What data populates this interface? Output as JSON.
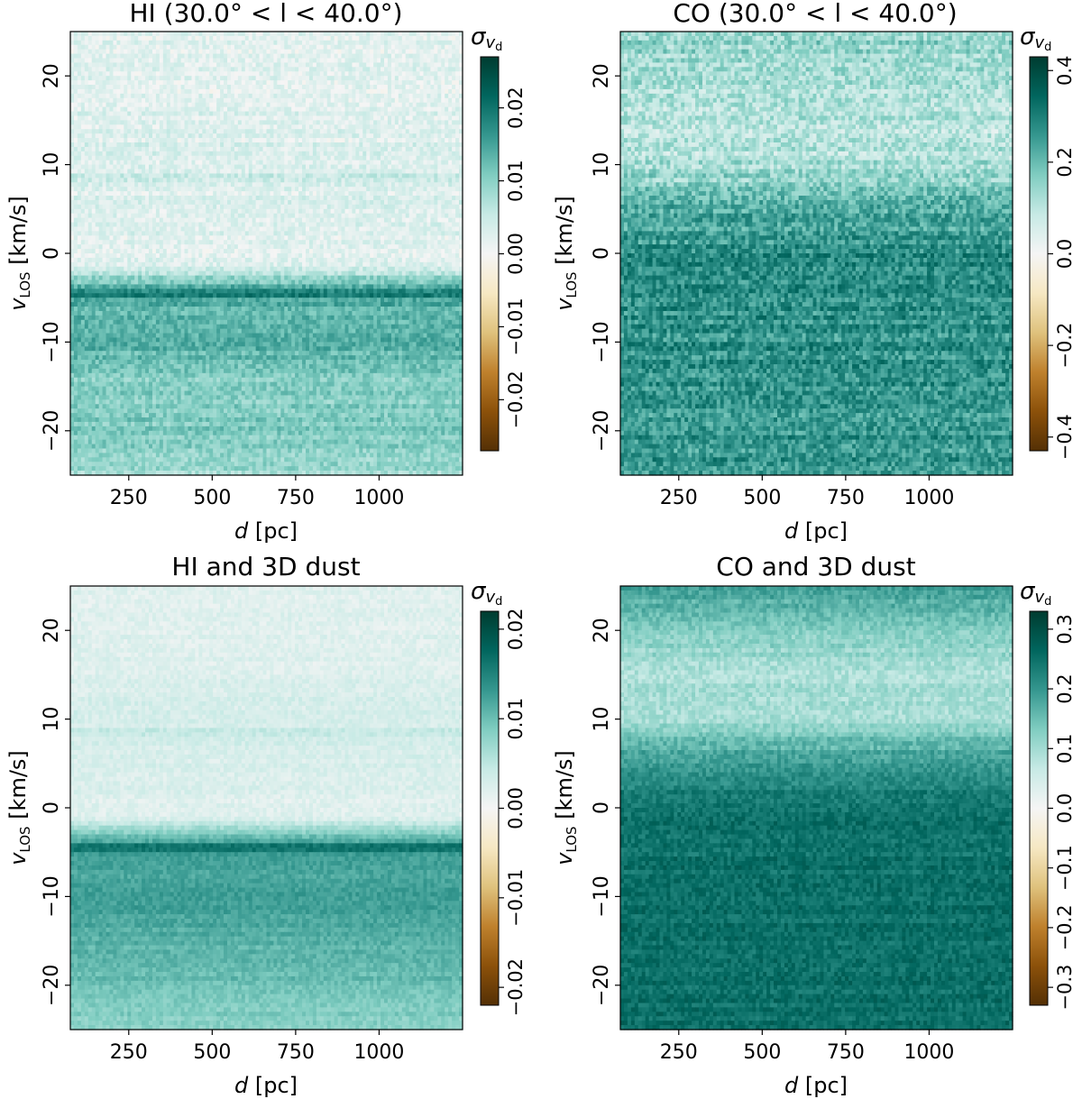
{
  "figure": {
    "colormap": {
      "name": "BrBG",
      "stops": [
        "#543005",
        "#8c510a",
        "#bf812d",
        "#dfc27d",
        "#f6e8c3",
        "#f5f5f5",
        "#c7eae5",
        "#80cdc1",
        "#35978f",
        "#01665e",
        "#003c30"
      ]
    },
    "colorbar_label_main": "σ",
    "colorbar_label_sub": "v",
    "colorbar_label_subsub": "d"
  },
  "chart_data": [
    {
      "type": "heatmap",
      "title": "HI (30.0° < l < 40.0°)",
      "xlabel": "d [pc]",
      "ylabel": "v",
      "ylabel_sub": "LOS",
      "ylabel_units": "[km/s]",
      "xlim": [
        75,
        1250
      ],
      "ylim": [
        -25,
        25
      ],
      "xticks": [
        250,
        500,
        750,
        1000
      ],
      "xtick_labels": [
        "250",
        "500",
        "750",
        "1000"
      ],
      "yticks": [
        -20,
        -10,
        0,
        10,
        20
      ],
      "ytick_labels": [
        "−20",
        "−10",
        "0",
        "10",
        "20"
      ],
      "colorbar": {
        "vmin": -0.027,
        "vmax": 0.027,
        "ticks": [
          -0.02,
          -0.01,
          0.0,
          0.01,
          0.02
        ],
        "tick_labels": [
          "−0.02",
          "−0.01",
          "0.00",
          "0.01",
          "0.02"
        ]
      },
      "profile": {
        "v": [
          -25,
          -20,
          -15,
          -10,
          -7,
          -5,
          -4.5,
          -4,
          -3,
          -2,
          -1.5,
          0,
          8,
          8.5,
          9,
          20,
          25
        ],
        "value": [
          0.008,
          0.011,
          0.01,
          0.014,
          0.013,
          0.015,
          0.022,
          0.015,
          0.01,
          0.006,
          0.003,
          0.002,
          0.003,
          0.005,
          0.003,
          0.002,
          0.002
        ]
      },
      "noise": 0.0025
    },
    {
      "type": "heatmap",
      "title": "CO (30.0° < l < 40.0°)",
      "xlabel": "d [pc]",
      "ylabel": "v",
      "ylabel_sub": "LOS",
      "ylabel_units": "[km/s]",
      "xlim": [
        75,
        1250
      ],
      "ylim": [
        -25,
        25
      ],
      "xticks": [
        250,
        500,
        750,
        1000
      ],
      "xtick_labels": [
        "250",
        "500",
        "750",
        "1000"
      ],
      "yticks": [
        -20,
        -10,
        0,
        10,
        20
      ],
      "ytick_labels": [
        "−20",
        "−10",
        "0",
        "10",
        "20"
      ],
      "colorbar": {
        "vmin": -0.43,
        "vmax": 0.43,
        "ticks": [
          -0.4,
          -0.2,
          0.0,
          0.2,
          0.4
        ],
        "tick_labels": [
          "−0.4",
          "−0.2",
          "0.0",
          "0.2",
          "0.4"
        ]
      },
      "profile": {
        "v": [
          -25,
          -10,
          0,
          5,
          10,
          15,
          20,
          25
        ],
        "value": [
          0.26,
          0.27,
          0.27,
          0.22,
          0.12,
          0.1,
          0.12,
          0.16
        ]
      },
      "noise": 0.06
    },
    {
      "type": "heatmap",
      "title": "HI and 3D dust",
      "xlabel": "d [pc]",
      "ylabel": "v",
      "ylabel_sub": "LOS",
      "ylabel_units": "[km/s]",
      "xlim": [
        75,
        1250
      ],
      "ylim": [
        -25,
        25
      ],
      "xticks": [
        250,
        500,
        750,
        1000
      ],
      "xtick_labels": [
        "250",
        "500",
        "750",
        "1000"
      ],
      "yticks": [
        -20,
        -10,
        0,
        10,
        20
      ],
      "ytick_labels": [
        "−20",
        "−10",
        "0",
        "10",
        "20"
      ],
      "colorbar": {
        "vmin": -0.022,
        "vmax": 0.022,
        "ticks": [
          -0.02,
          -0.01,
          0.0,
          0.01,
          0.02
        ],
        "tick_labels": [
          "−0.02",
          "−0.01",
          "0.00",
          "0.01",
          "0.02"
        ]
      },
      "profile": {
        "v": [
          -25,
          -20,
          -15,
          -10,
          -7,
          -5,
          -4.5,
          -4,
          -3,
          -2,
          -1.5,
          0,
          8,
          8.5,
          9,
          20,
          25
        ],
        "value": [
          0.008,
          0.01,
          0.011,
          0.013,
          0.012,
          0.013,
          0.02,
          0.013,
          0.009,
          0.006,
          0.003,
          0.002,
          0.003,
          0.005,
          0.003,
          0.002,
          0.002
        ]
      },
      "noise": 0.0012
    },
    {
      "type": "heatmap",
      "title": "CO and 3D dust",
      "xlabel": "d [pc]",
      "ylabel": "v",
      "ylabel_sub": "LOS",
      "ylabel_units": "[km/s]",
      "xlim": [
        75,
        1250
      ],
      "ylim": [
        -25,
        25
      ],
      "xticks": [
        250,
        500,
        750,
        1000
      ],
      "xtick_labels": [
        "250",
        "500",
        "750",
        "1000"
      ],
      "yticks": [
        -20,
        -10,
        0,
        10,
        20
      ],
      "ytick_labels": [
        "−20",
        "−10",
        "0",
        "10",
        "20"
      ],
      "colorbar": {
        "vmin": -0.33,
        "vmax": 0.33,
        "ticks": [
          -0.3,
          -0.2,
          -0.1,
          0.0,
          0.1,
          0.2,
          0.3
        ],
        "tick_labels": [
          "−0.3",
          "−0.2",
          "−0.1",
          "0.0",
          "0.1",
          "0.2",
          "0.3"
        ]
      },
      "profile": {
        "v": [
          -25,
          -10,
          0,
          3,
          6,
          10,
          15,
          20,
          25
        ],
        "value": [
          0.25,
          0.25,
          0.25,
          0.22,
          0.18,
          0.1,
          0.09,
          0.13,
          0.19
        ]
      },
      "noise": 0.025
    }
  ]
}
